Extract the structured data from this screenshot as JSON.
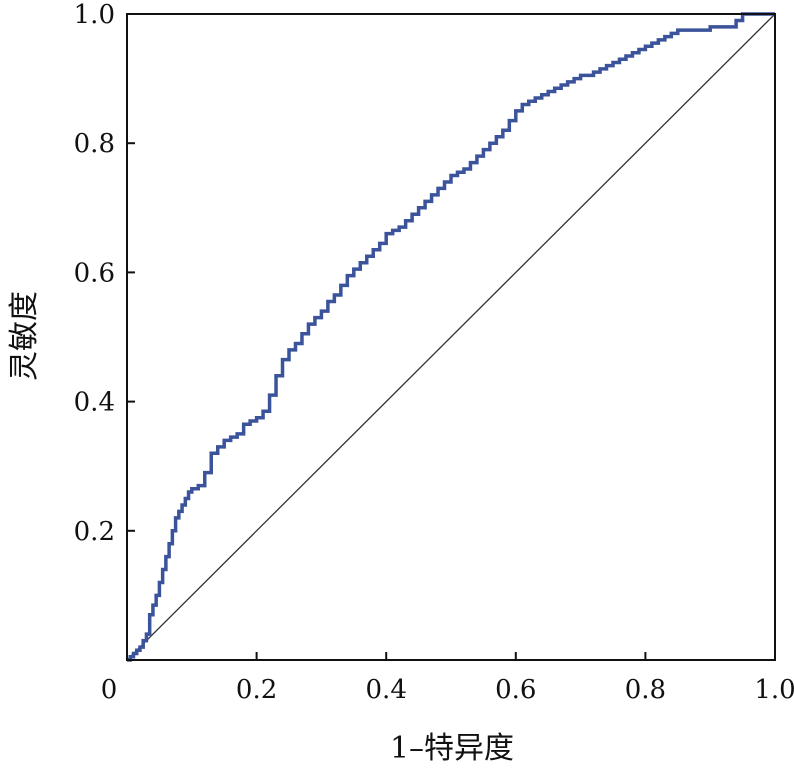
{
  "chart_data": {
    "type": "line",
    "title": "",
    "xlabel": "1–特异度",
    "ylabel": "灵敏度",
    "xlim": [
      0,
      1
    ],
    "ylim": [
      0,
      1
    ],
    "grid": false,
    "x_ticks": [
      "0",
      "0.2",
      "0.4",
      "0.6",
      "0.8",
      "1.0"
    ],
    "y_ticks": [
      "0.2",
      "0.4",
      "0.6",
      "0.8",
      "1.0"
    ],
    "colors": {
      "roc": "#3a539b",
      "reference": "#333333",
      "frame": "#111111"
    },
    "series": [
      {
        "x": [
          0,
          0.005,
          0.01,
          0.015,
          0.02,
          0.025,
          0.03,
          0.035,
          0.04,
          0.045,
          0.05,
          0.055,
          0.06,
          0.065,
          0.07,
          0.075,
          0.08,
          0.085,
          0.09,
          0.095,
          0.1,
          0.11,
          0.12,
          0.13,
          0.14,
          0.15,
          0.16,
          0.17,
          0.18,
          0.19,
          0.2,
          0.21,
          0.22,
          0.23,
          0.24,
          0.25,
          0.26,
          0.27,
          0.28,
          0.29,
          0.3,
          0.31,
          0.32,
          0.33,
          0.34,
          0.35,
          0.36,
          0.37,
          0.38,
          0.39,
          0.4,
          0.41,
          0.42,
          0.43,
          0.44,
          0.45,
          0.46,
          0.47,
          0.48,
          0.49,
          0.5,
          0.51,
          0.52,
          0.53,
          0.54,
          0.55,
          0.56,
          0.57,
          0.58,
          0.59,
          0.6,
          0.61,
          0.62,
          0.63,
          0.64,
          0.65,
          0.66,
          0.67,
          0.68,
          0.69,
          0.7,
          0.71,
          0.72,
          0.73,
          0.74,
          0.75,
          0.76,
          0.77,
          0.78,
          0.79,
          0.8,
          0.81,
          0.82,
          0.83,
          0.84,
          0.85,
          0.86,
          0.87,
          0.88,
          0.89,
          0.9,
          0.91,
          0.92,
          0.93,
          0.94,
          0.95,
          0.96,
          0.97,
          0.98,
          0.99,
          1.0
        ],
        "y": [
          0,
          0.005,
          0.01,
          0.015,
          0.02,
          0.03,
          0.04,
          0.07,
          0.085,
          0.1,
          0.12,
          0.14,
          0.16,
          0.18,
          0.2,
          0.22,
          0.23,
          0.24,
          0.25,
          0.26,
          0.265,
          0.27,
          0.29,
          0.32,
          0.33,
          0.34,
          0.345,
          0.35,
          0.365,
          0.37,
          0.375,
          0.385,
          0.41,
          0.44,
          0.465,
          0.48,
          0.49,
          0.505,
          0.52,
          0.53,
          0.54,
          0.555,
          0.565,
          0.58,
          0.595,
          0.605,
          0.615,
          0.625,
          0.635,
          0.645,
          0.66,
          0.665,
          0.67,
          0.68,
          0.69,
          0.7,
          0.71,
          0.72,
          0.73,
          0.74,
          0.75,
          0.755,
          0.76,
          0.77,
          0.78,
          0.79,
          0.8,
          0.81,
          0.82,
          0.835,
          0.85,
          0.86,
          0.865,
          0.87,
          0.875,
          0.88,
          0.885,
          0.89,
          0.895,
          0.9,
          0.905,
          0.905,
          0.91,
          0.915,
          0.92,
          0.925,
          0.93,
          0.935,
          0.94,
          0.945,
          0.95,
          0.955,
          0.96,
          0.965,
          0.97,
          0.975,
          0.975,
          0.975,
          0.975,
          0.975,
          0.98,
          0.98,
          0.98,
          0.98,
          0.99,
          1.0,
          1.0,
          1.0,
          1.0,
          1.0,
          1.0
        ]
      }
    ],
    "reference_line": {
      "x": [
        0,
        1
      ],
      "y": [
        0,
        1
      ]
    }
  }
}
